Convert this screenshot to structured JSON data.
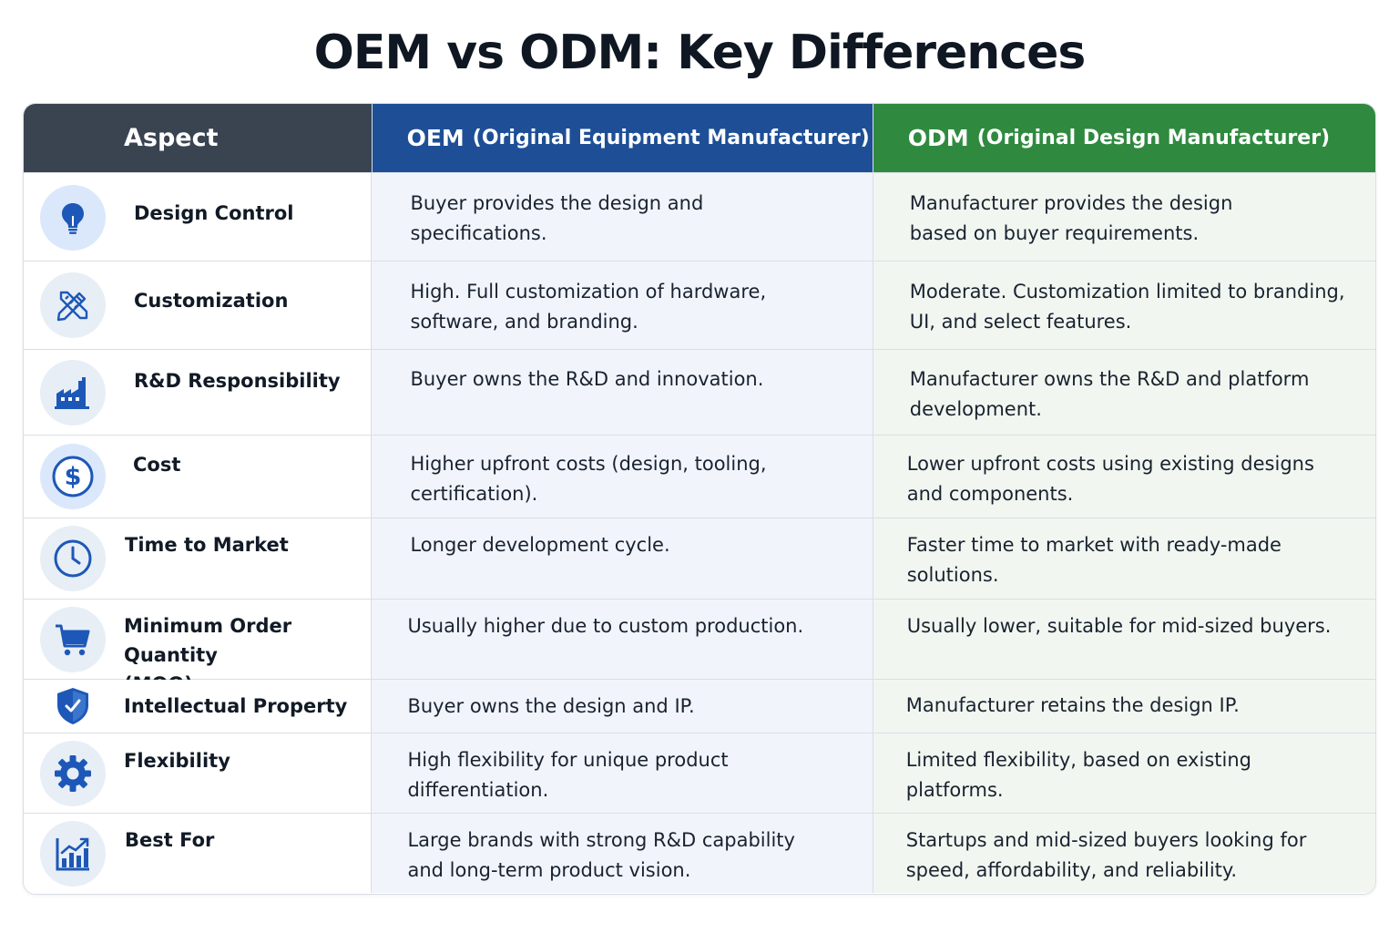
{
  "title": "OEM vs ODM: Key Differences",
  "header": {
    "aspect": "Aspect",
    "oem_abbr": "OEM",
    "oem_full": "(Original Equipment Manufacturer)",
    "odm_abbr": "ODM",
    "odm_full": "(Original Design Manufacturer)"
  },
  "colors": {
    "aspect_header": "#3a4350",
    "oem_header": "#1e4f96",
    "odm_header": "#2f8a3f",
    "icon_blue": "#1d58b8"
  },
  "rows": [
    {
      "icon": "lightbulb-icon",
      "aspect": "Design Control",
      "oem": [
        "Buyer provides the design and",
        "specifications."
      ],
      "odm": [
        "Manufacturer provides the design",
        "based on buyer requirements."
      ]
    },
    {
      "icon": "pencil-ruler-icon",
      "aspect": "Customization",
      "oem": [
        "High. Full customization of hardware,",
        "software, and branding."
      ],
      "odm": [
        "Moderate. Customization limited to branding,",
        "UI, and select features."
      ]
    },
    {
      "icon": "factory-icon",
      "aspect": "R&D Responsibility",
      "oem": [
        "Buyer owns the R&D and innovation."
      ],
      "odm": [
        "Manufacturer owns the R&D and platform",
        "development."
      ]
    },
    {
      "icon": "dollar-icon",
      "aspect": "Cost",
      "oem": [
        "Higher upfront costs (design, tooling,",
        "certification)."
      ],
      "odm": [
        "Lower upfront costs using existing designs",
        "and components."
      ]
    },
    {
      "icon": "clock-icon",
      "aspect": "Time to Market",
      "oem": [
        "Longer development cycle."
      ],
      "odm": [
        "Faster time to market with ready-made",
        "solutions."
      ]
    },
    {
      "icon": "cart-icon",
      "aspect": [
        "Minimum Order Quantity",
        "(MOQ)"
      ],
      "oem": [
        "Usually higher due to custom production."
      ],
      "odm": [
        "Usually lower, suitable for mid-sized buyers."
      ]
    },
    {
      "icon": "shield-icon",
      "aspect": "Intellectual Property",
      "oem": [
        "Buyer owns the design and IP."
      ],
      "odm": [
        "Manufacturer retains the design IP."
      ]
    },
    {
      "icon": "gear-icon",
      "aspect": "Flexibility",
      "oem": [
        "High flexibility for unique product",
        "differentiation."
      ],
      "odm": [
        "Limited flexibility, based on existing",
        "platforms."
      ]
    },
    {
      "icon": "growth-chart-icon",
      "aspect": "Best For",
      "oem": [
        "Large brands with strong R&D capability",
        "and long-term product vision."
      ],
      "odm": [
        "Startups and mid-sized buyers looking for",
        "speed, affordability, and reliability."
      ]
    }
  ]
}
